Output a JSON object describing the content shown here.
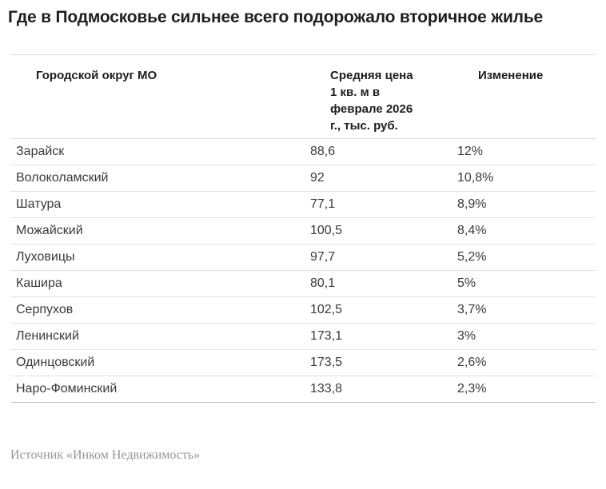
{
  "title": "Где в Подмосковье сильнее всего подорожало вторичное жилье",
  "table": {
    "columns": [
      {
        "label": "Городской округ МО"
      },
      {
        "label": "Средняя цена 1 кв. м в феврале 2026 г., тыс. руб."
      },
      {
        "label": "Изменение"
      }
    ],
    "rows": [
      {
        "district": "Зарайск",
        "price": "88,6",
        "change": "12%"
      },
      {
        "district": "Волоколамский",
        "price": "92",
        "change": "10,8%"
      },
      {
        "district": "Шатура",
        "price": "77,1",
        "change": "8,9%"
      },
      {
        "district": "Можайский",
        "price": "100,5",
        "change": "8,4%"
      },
      {
        "district": "Луховицы",
        "price": "97,7",
        "change": "5,2%"
      },
      {
        "district": "Кашира",
        "price": "80,1",
        "change": "5%"
      },
      {
        "district": "Серпухов",
        "price": "102,5",
        "change": "3,7%"
      },
      {
        "district": "Ленинский",
        "price": "173,1",
        "change": "3%"
      },
      {
        "district": "Одинцовский",
        "price": "173,5",
        "change": "2,6%"
      },
      {
        "district": "Наро-Фоминский",
        "price": "133,8",
        "change": "2,3%"
      }
    ]
  },
  "source": "Источник «Инком Недвижимость»",
  "colors": {
    "bg": "#ffffff",
    "title": "#1f1f1f",
    "header_text": "#1d1d1d",
    "text": "#3a3a3a",
    "border": "#dcdcdc",
    "row_border": "#e3e3e3",
    "bottom_border": "#bdbdbd",
    "source_text": "#959595"
  },
  "chart_data": {
    "type": "table",
    "title": "Где в Подмосковье сильнее всего подорожало вторичное жилье",
    "columns": [
      "Городской округ МО",
      "Средняя цена 1 кв. м в феврале 2026 г., тыс. руб.",
      "Изменение"
    ],
    "rows": [
      [
        "Зарайск",
        88.6,
        "12%"
      ],
      [
        "Волоколамский",
        92,
        "10,8%"
      ],
      [
        "Шатура",
        77.1,
        "8,9%"
      ],
      [
        "Можайский",
        100.5,
        "8,4%"
      ],
      [
        "Луховицы",
        97.7,
        "5,2%"
      ],
      [
        "Кашира",
        80.1,
        "5%"
      ],
      [
        "Серпухов",
        102.5,
        "3,7%"
      ],
      [
        "Ленинский",
        173.1,
        "3%"
      ],
      [
        "Одинцовский",
        173.5,
        "2,6%"
      ],
      [
        "Наро-Фоминский",
        133.8,
        "2,3%"
      ]
    ],
    "source": "Источник «Инком Недвижимость»"
  }
}
